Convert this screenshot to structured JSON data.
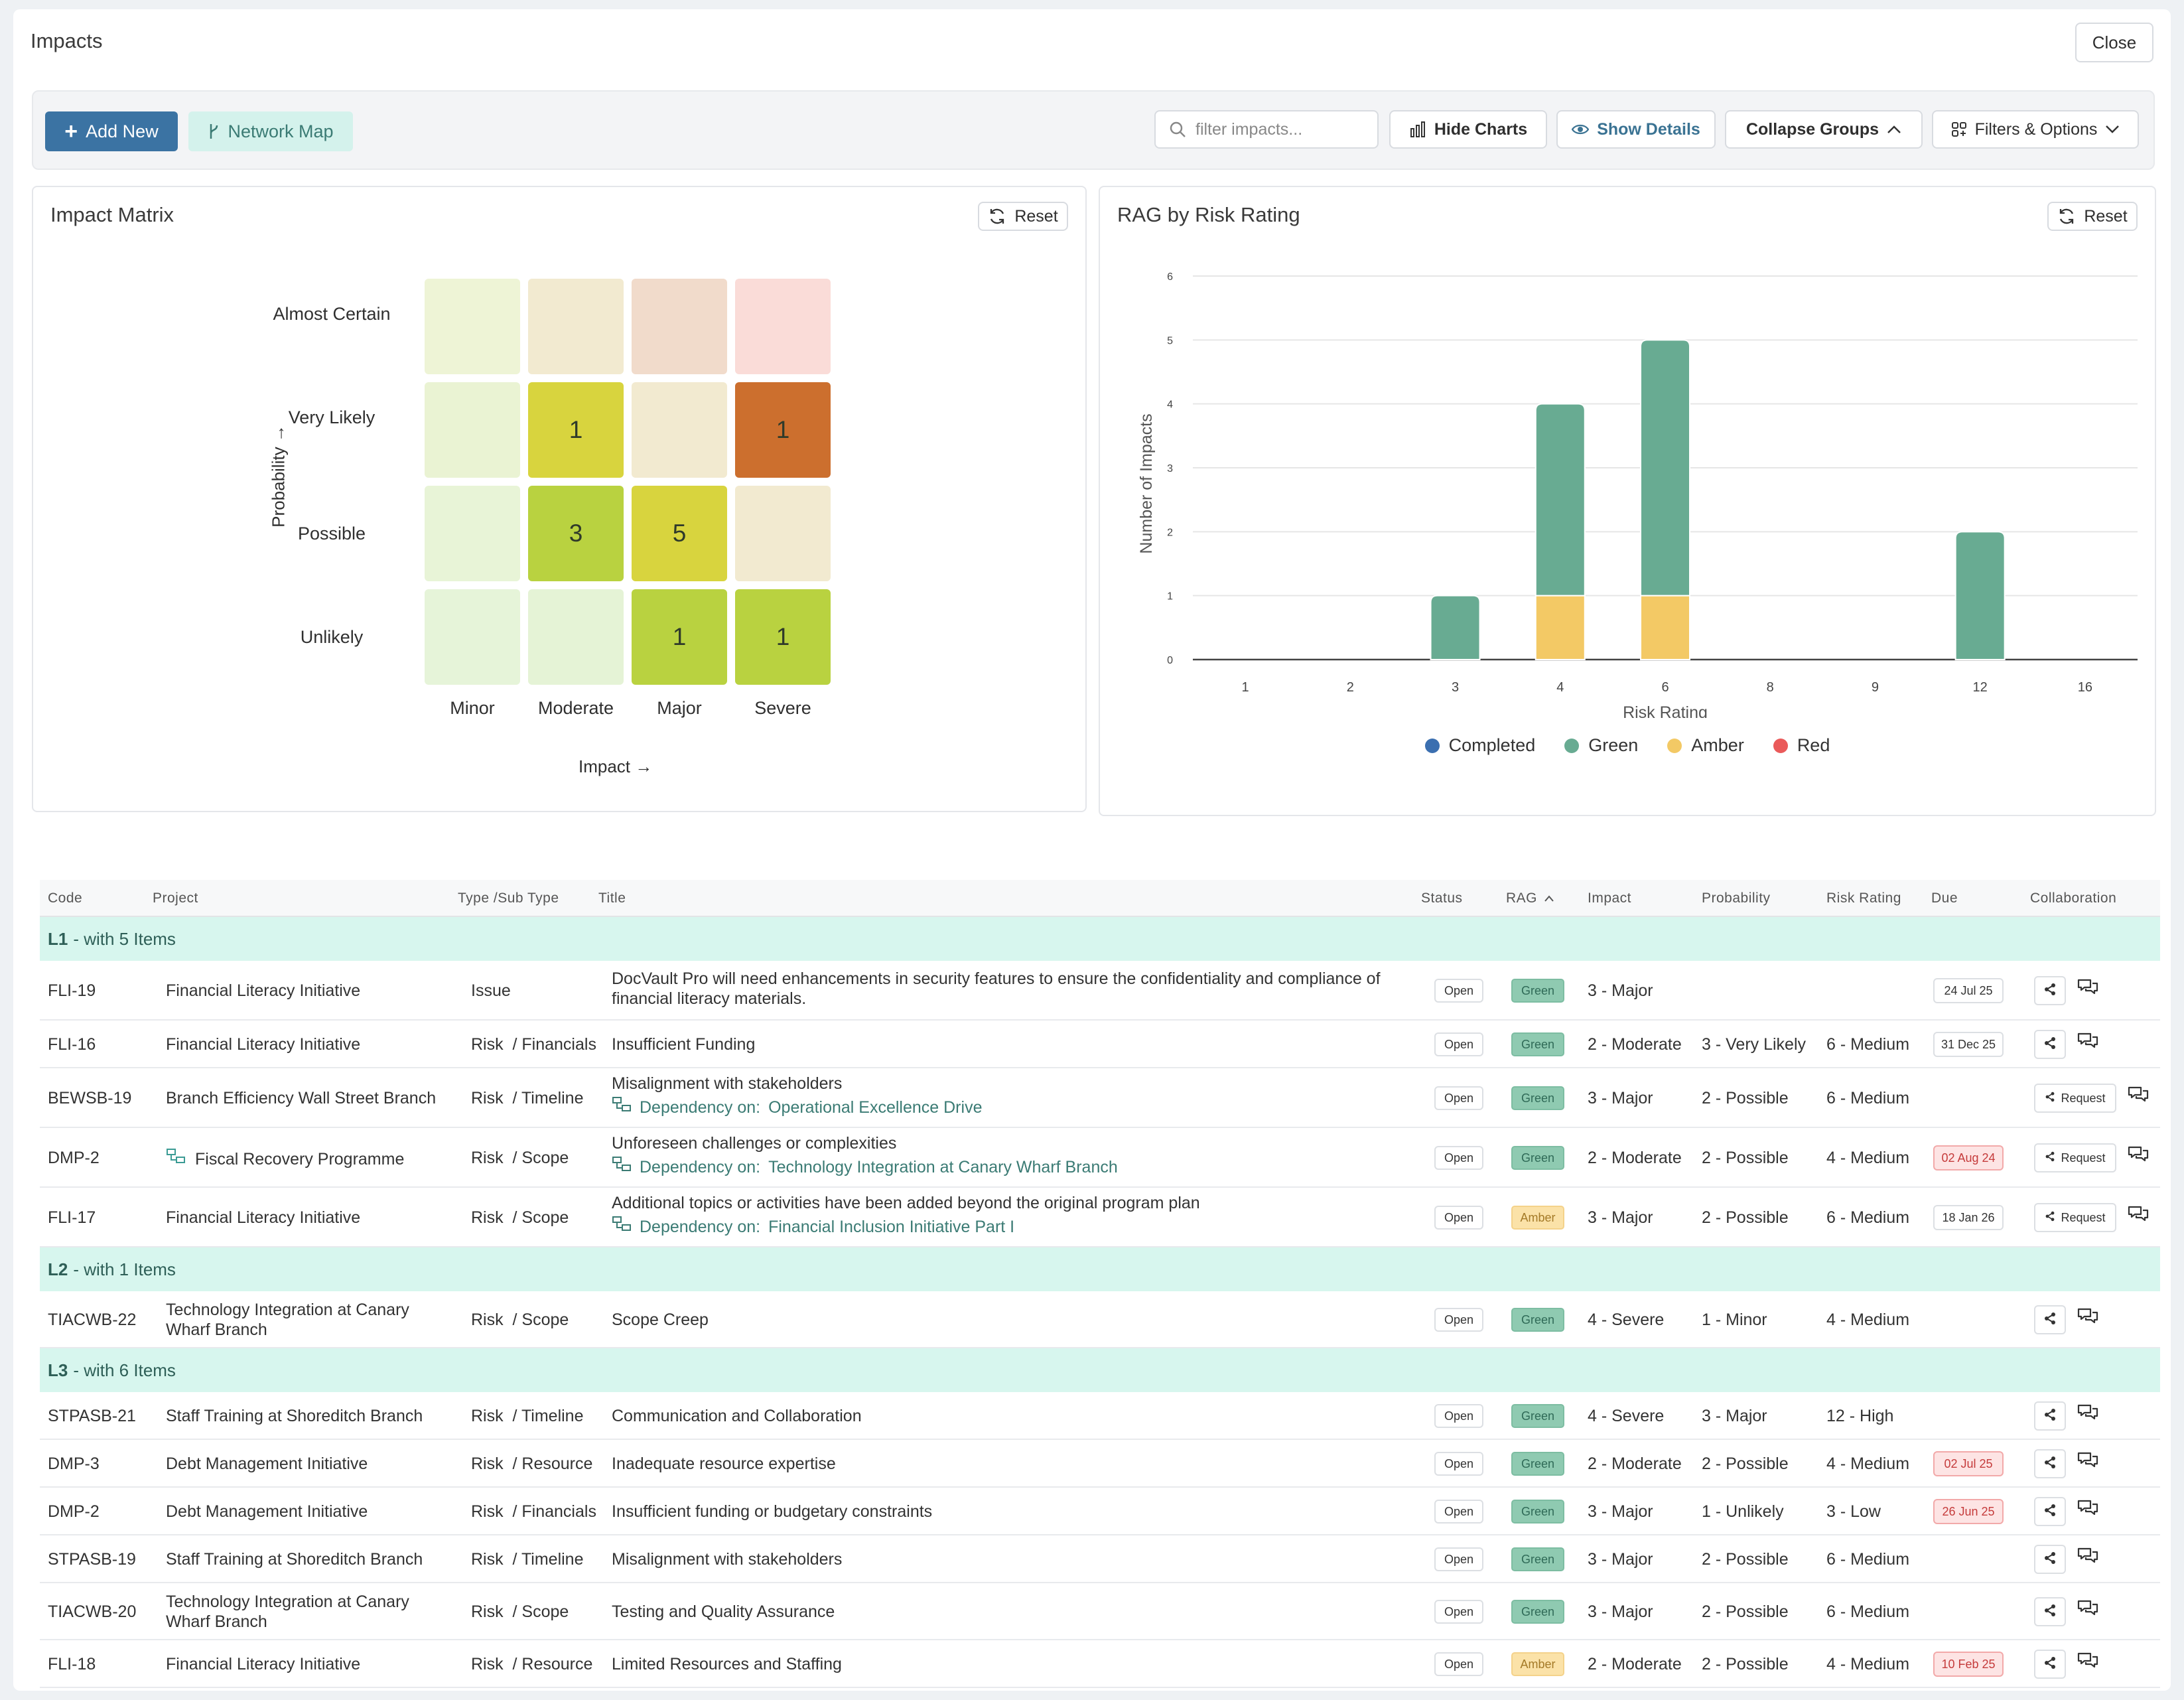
{
  "page": {
    "title": "Impacts",
    "close_label": "Close"
  },
  "toolbar": {
    "add_label": "Add New",
    "network_label": "Network Map",
    "search_placeholder": "filter impacts...",
    "hide_charts_label": "Hide Charts",
    "show_details_label": "Show Details",
    "collapse_groups_label": "Collapse Groups",
    "filters_label": "Filters & Options"
  },
  "matrix": {
    "title": "Impact Matrix",
    "reset_label": "Reset",
    "x_axis_label": "Impact →",
    "y_axis_label": "Probability →",
    "impacts": [
      "Minor",
      "Moderate",
      "Major",
      "Severe"
    ],
    "probabilities": [
      "Almost Certain",
      "Very Likely",
      "Possible",
      "Unlikely"
    ],
    "counts": [
      [
        "",
        "",
        "",
        ""
      ],
      [
        "",
        "1",
        "",
        "1"
      ],
      [
        "",
        "3",
        "5",
        ""
      ],
      [
        "",
        "",
        "1",
        "1"
      ]
    ],
    "colors": [
      [
        "#eef4d6",
        "#f2ead0",
        "#f1dbcb",
        "#fadcd8"
      ],
      [
        "#eaf3d3",
        "#d8d43e",
        "#f2ead0",
        "#cc6f2e"
      ],
      [
        "#e8f4d7",
        "#b9d240",
        "#d8d43e",
        "#f2ead0"
      ],
      [
        "#e6f4d9",
        "#e5f3d6",
        "#b9d240",
        "#b9d240"
      ]
    ]
  },
  "rag_chart": {
    "title": "RAG by Risk Rating",
    "reset_label": "Reset",
    "chart_data": {
      "type": "bar",
      "categories": [
        "1",
        "2",
        "3",
        "4",
        "6",
        "8",
        "9",
        "12",
        "16"
      ],
      "series": [
        {
          "name": "Completed",
          "color": "#3b6fb0",
          "values": [
            0,
            0,
            0,
            0,
            0,
            0,
            0,
            0,
            0
          ]
        },
        {
          "name": "Green",
          "color": "#68ab92",
          "values": [
            0,
            0,
            1,
            3,
            4,
            0,
            0,
            2,
            0
          ]
        },
        {
          "name": "Amber",
          "color": "#f3c965",
          "values": [
            0,
            0,
            0,
            1,
            1,
            0,
            0,
            0,
            0
          ]
        },
        {
          "name": "Red",
          "color": "#ea5a5a",
          "values": [
            0,
            0,
            0,
            0,
            0,
            0,
            0,
            0,
            0
          ]
        }
      ],
      "stacked": true,
      "xlabel": "Risk Rating",
      "ylabel": "Number of Impacts",
      "ylim": [
        0,
        6
      ],
      "yticks": [
        "0",
        "1",
        "2",
        "3",
        "4",
        "5",
        "6"
      ],
      "grid": true,
      "legend": "bottom"
    }
  },
  "table": {
    "headers": {
      "code": "Code",
      "project": "Project",
      "type": "Type /Sub Type",
      "title": "Title",
      "status": "Status",
      "rag": "RAG",
      "impact": "Impact",
      "probability": "Probability",
      "risk_rating": "Risk Rating",
      "due": "Due",
      "collaboration": "Collaboration"
    },
    "groups": [
      {
        "name": "L1",
        "suffix": "- with 5 Items"
      },
      {
        "name": "L2",
        "suffix": "- with 1 Items"
      },
      {
        "name": "L3",
        "suffix": "- with 6 Items"
      }
    ],
    "dependency_prefix": "Dependency on:",
    "request_label": "Request",
    "rows": [
      {
        "group": 0,
        "code": "FLI-19",
        "project": "Financial Literacy Initiative",
        "project_icon": false,
        "type": "Issue",
        "title": "DocVault Pro will need enhancements in security features to ensure the confidentiality and compliance of financial literacy materials.",
        "dependency": "",
        "status": "Open",
        "rag": "Green",
        "impact": "3 - Major",
        "probability": "",
        "risk_rating": "",
        "due": "24 Jul 25",
        "due_overdue": false,
        "request": false
      },
      {
        "group": 0,
        "code": "FLI-16",
        "project": "Financial Literacy Initiative",
        "project_icon": false,
        "type": "Risk  / Financials",
        "title": "Insufficient Funding",
        "dependency": "",
        "status": "Open",
        "rag": "Green",
        "impact": "2 - Moderate",
        "probability": "3 - Very Likely",
        "risk_rating": "6 - Medium",
        "due": "31 Dec 25",
        "due_overdue": false,
        "request": false
      },
      {
        "group": 0,
        "code": "BEWSB-19",
        "project": "Branch Efficiency Wall Street Branch",
        "project_icon": false,
        "type": "Risk  / Timeline",
        "title": "Misalignment with stakeholders",
        "dependency": "Operational Excellence Drive",
        "status": "Open",
        "rag": "Green",
        "impact": "3 - Major",
        "probability": "2 - Possible",
        "risk_rating": "6 - Medium",
        "due": "",
        "due_overdue": false,
        "request": true
      },
      {
        "group": 0,
        "code": "DMP-2",
        "project": "Fiscal Recovery Programme",
        "project_icon": true,
        "type": "Risk  / Scope",
        "title": "Unforeseen challenges or complexities",
        "dependency": "Technology Integration at Canary Wharf Branch",
        "status": "Open",
        "rag": "Green",
        "impact": "2 - Moderate",
        "probability": "2 - Possible",
        "risk_rating": "4 - Medium",
        "due": "02 Aug 24",
        "due_overdue": true,
        "request": true
      },
      {
        "group": 0,
        "code": "FLI-17",
        "project": "Financial Literacy Initiative",
        "project_icon": false,
        "type": "Risk  / Scope",
        "title": "Additional topics or activities have been added beyond the original program plan",
        "dependency": "Financial Inclusion Initiative Part I",
        "status": "Open",
        "rag": "Amber",
        "impact": "3 - Major",
        "probability": "2 - Possible",
        "risk_rating": "6 - Medium",
        "due": "18 Jan 26",
        "due_overdue": false,
        "request": true
      },
      {
        "group": 1,
        "code": "TIACWB-22",
        "project": "Technology Integration at Canary Wharf Branch",
        "project_icon": false,
        "type": "Risk  / Scope",
        "title": "Scope Creep",
        "dependency": "",
        "status": "Open",
        "rag": "Green",
        "impact": "4 - Severe",
        "probability": "1 - Minor",
        "risk_rating": "4 - Medium",
        "due": "",
        "due_overdue": false,
        "request": false
      },
      {
        "group": 2,
        "code": "STPASB-21",
        "project": "Staff Training at Shoreditch Branch",
        "project_icon": false,
        "type": "Risk  / Timeline",
        "title": "Communication and Collaboration",
        "dependency": "",
        "status": "Open",
        "rag": "Green",
        "impact": "4 - Severe",
        "probability": "3 - Major",
        "risk_rating": "12 - High",
        "due": "",
        "due_overdue": false,
        "request": false
      },
      {
        "group": 2,
        "code": "DMP-3",
        "project": "Debt Management Initiative",
        "project_icon": false,
        "type": "Risk  / Resource",
        "title": "Inadequate resource expertise",
        "dependency": "",
        "status": "Open",
        "rag": "Green",
        "impact": "2 - Moderate",
        "probability": "2 - Possible",
        "risk_rating": "4 - Medium",
        "due": "02 Jul 25",
        "due_overdue": true,
        "request": false
      },
      {
        "group": 2,
        "code": "DMP-2",
        "project": "Debt Management Initiative",
        "project_icon": false,
        "type": "Risk  / Financials",
        "title": "Insufficient funding or budgetary constraints",
        "dependency": "",
        "status": "Open",
        "rag": "Green",
        "impact": "3 - Major",
        "probability": "1 - Unlikely",
        "risk_rating": "3 - Low",
        "due": "26 Jun 25",
        "due_overdue": true,
        "request": false
      },
      {
        "group": 2,
        "code": "STPASB-19",
        "project": "Staff Training at Shoreditch Branch",
        "project_icon": false,
        "type": "Risk  / Timeline",
        "title": "Misalignment with stakeholders",
        "dependency": "",
        "status": "Open",
        "rag": "Green",
        "impact": "3 - Major",
        "probability": "2 - Possible",
        "risk_rating": "6 - Medium",
        "due": "",
        "due_overdue": false,
        "request": false
      },
      {
        "group": 2,
        "code": "TIACWB-20",
        "project": "Technology Integration at Canary Wharf Branch",
        "project_icon": false,
        "type": "Risk  / Scope",
        "title": "Testing and Quality Assurance",
        "dependency": "",
        "status": "Open",
        "rag": "Green",
        "impact": "3 - Major",
        "probability": "2 - Possible",
        "risk_rating": "6 - Medium",
        "due": "",
        "due_overdue": false,
        "request": false
      },
      {
        "group": 2,
        "code": "FLI-18",
        "project": "Financial Literacy Initiative",
        "project_icon": false,
        "type": "Risk  / Resource",
        "title": "Limited Resources and Staffing",
        "dependency": "",
        "status": "Open",
        "rag": "Amber",
        "impact": "2 - Moderate",
        "probability": "2 - Possible",
        "risk_rating": "4 - Medium",
        "due": "10 Feb 25",
        "due_overdue": true,
        "request": false
      }
    ]
  }
}
